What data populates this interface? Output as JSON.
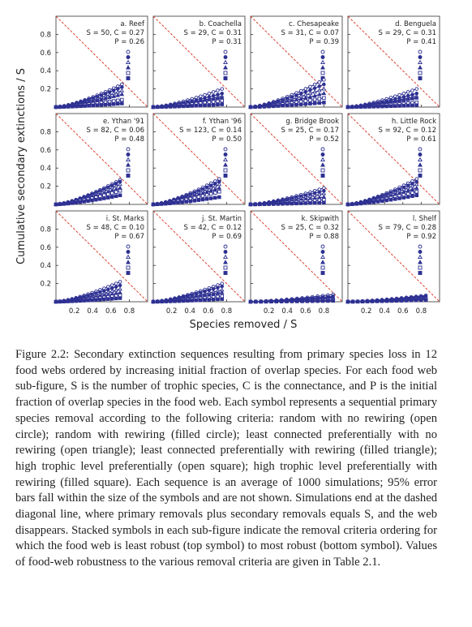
{
  "figure": {
    "y_label": "Cumulative secondary extinctions / S",
    "x_label": "Species removed / S",
    "xlim": [
      0,
      1
    ],
    "ylim": [
      0,
      1
    ],
    "xticks": [
      0.2,
      0.4,
      0.6,
      0.8
    ],
    "yticks": [
      0.2,
      0.4,
      0.6,
      0.8
    ],
    "color": "#2e3192",
    "diagonal_color": "#d9301c",
    "panels": [
      {
        "title": "a. Reef",
        "stats": "S = 50, C = 0.27",
        "overlap": "P = 0.26",
        "end_x": 0.72,
        "end_y": [
          0.25,
          0.22,
          0.18,
          0.14,
          0.08,
          0.04
        ]
      },
      {
        "title": "b. Coachella",
        "stats": "S = 29, C = 0.31",
        "overlap": "P = 0.31",
        "end_x": 0.75,
        "end_y": [
          0.2,
          0.15,
          0.12,
          0.1,
          0.07,
          0.03
        ]
      },
      {
        "title": "c. Chesapeake",
        "stats": "S = 31, C = 0.07",
        "overlap": "P = 0.39",
        "end_x": 0.8,
        "end_y": [
          0.3,
          0.25,
          0.2,
          0.15,
          0.1,
          0.05
        ]
      },
      {
        "title": "d. Benguela",
        "stats": "S = 29, C = 0.31",
        "overlap": "P = 0.41",
        "end_x": 0.75,
        "end_y": [
          0.2,
          0.15,
          0.12,
          0.1,
          0.05,
          0.02
        ]
      },
      {
        "title": "e. Ythan '91",
        "stats": "S = 82, C = 0.06",
        "overlap": "P = 0.48",
        "end_x": 0.7,
        "end_y": [
          0.27,
          0.25,
          0.22,
          0.18,
          0.15,
          0.1
        ]
      },
      {
        "title": "f. Ythan '96",
        "stats": "S = 123, C = 0.14",
        "overlap": "P = 0.50",
        "end_x": 0.72,
        "end_y": [
          0.28,
          0.25,
          0.22,
          0.18,
          0.14,
          0.08
        ]
      },
      {
        "title": "g. Bridge Brook",
        "stats": "S = 25, C = 0.17",
        "overlap": "P = 0.52",
        "end_x": 0.8,
        "end_y": [
          0.18,
          0.15,
          0.12,
          0.08,
          0.05,
          0.02
        ]
      },
      {
        "title": "h. Little Rock",
        "stats": "S = 92, C = 0.12",
        "overlap": "P = 0.61",
        "end_x": 0.75,
        "end_y": [
          0.28,
          0.25,
          0.22,
          0.18,
          0.14,
          0.1
        ]
      },
      {
        "title": "i. St. Marks",
        "stats": "S = 48, C = 0.10",
        "overlap": "P = 0.67",
        "end_x": 0.7,
        "end_y": [
          0.22,
          0.18,
          0.14,
          0.1,
          0.07,
          0.04
        ]
      },
      {
        "title": "j. St. Martin",
        "stats": "S = 42, C = 0.12",
        "overlap": "P = 0.69",
        "end_x": 0.75,
        "end_y": [
          0.2,
          0.17,
          0.13,
          0.1,
          0.06,
          0.03
        ]
      },
      {
        "title": "k. Skipwith",
        "stats": "S = 25, C = 0.32",
        "overlap": "P = 0.88",
        "end_x": 0.9,
        "end_y": [
          0.08,
          0.06,
          0.05,
          0.04,
          0.02,
          0.01
        ]
      },
      {
        "title": "l. Shelf",
        "stats": "S = 79, C = 0.28",
        "overlap": "P = 0.92",
        "end_x": 0.85,
        "end_y": [
          0.07,
          0.06,
          0.05,
          0.04,
          0.03,
          0.02
        ]
      }
    ]
  },
  "caption": {
    "label": "Figure 2.2:",
    "text": "Secondary extinction sequences resulting from primary species loss in 12 food webs ordered by increasing initial fraction of overlap species. For each food web sub-figure, S is the number of trophic species, C is the connectance, and P is the initial fraction of overlap species in the food web. Each symbol represents a sequential primary species removal according to the following criteria: random with no rewiring (open circle); random with rewiring (filled circle); least connected preferentially with no rewiring (open triangle); least connected preferentially with rewiring (filled triangle); high trophic level preferentially (open square); high trophic level preferentially with rewiring (filled square). Each sequence is an average of 1000 simulations; 95% error bars fall within the size of the symbols and are not shown. Simulations end at the dashed diagonal line, where primary removals plus secondary removals equals S, and the web disappears. Stacked symbols in each sub-figure indicate the removal criteria ordering for which the food web is least robust (top symbol) to most robust (bottom symbol). Values of food-web robustness to the various removal criteria are given in Table 2.1."
  }
}
